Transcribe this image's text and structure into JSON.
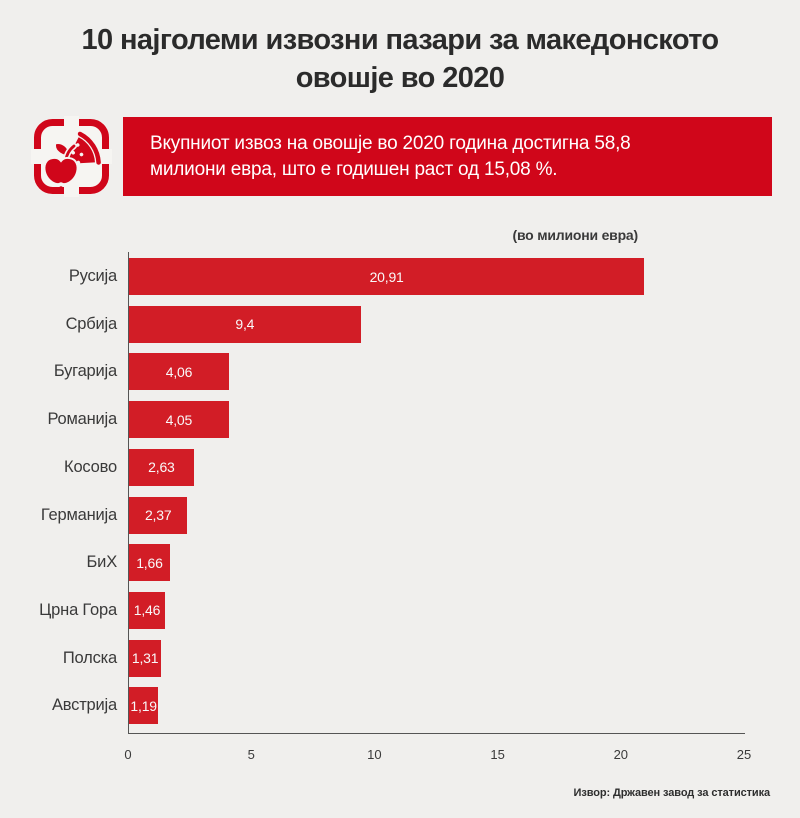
{
  "page": {
    "background": "#f0efed"
  },
  "title": {
    "line1": "10 најголеми извозни пазари за македонското",
    "line2": "овошје во 2020"
  },
  "callout": {
    "icon": "fruit-icon",
    "accent_color": "#d0061a",
    "line1": "Вкупниот извоз на овошје во 2020 година достигна 58,8",
    "line2": "милиони евра, што е годишен раст од 15,08 %."
  },
  "chart_data": {
    "type": "bar",
    "orientation": "horizontal",
    "title": "10 најголеми извозни пазари за македонското овошје во 2020",
    "unit_note": "(во милиони евра)",
    "categories": [
      "Русија",
      "Србија",
      "Бугарија",
      "Романија",
      "Косово",
      "Германија",
      "БиХ",
      "Црна Гора",
      "Полска",
      "Австрија"
    ],
    "values": [
      20.91,
      9.4,
      4.06,
      4.05,
      2.63,
      2.37,
      1.66,
      1.46,
      1.31,
      1.19
    ],
    "value_labels": [
      "20,91",
      "9,4",
      "4,06",
      "4,05",
      "2,63",
      "2,37",
      "1,66",
      "1,46",
      "1,31",
      "1,19"
    ],
    "xlim": [
      0,
      25
    ],
    "xticks": [
      0,
      5,
      10,
      15,
      20,
      25
    ],
    "bar_color": "#d21d26",
    "grid": false,
    "value_label_position": "inside-center",
    "legend": "none"
  },
  "source": "Извор: Државен завод за статистика"
}
